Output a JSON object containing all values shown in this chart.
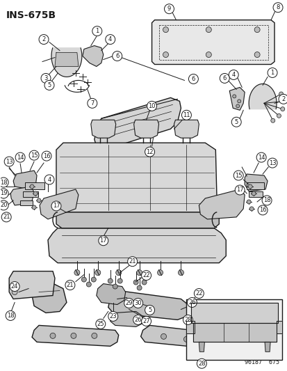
{
  "title": "INS-675B",
  "bg_color": "#ffffff",
  "fig_width": 4.14,
  "fig_height": 5.33,
  "dpi": 100,
  "bottom_right_text": "96187  675",
  "lc": "#1a1a1a",
  "cc": "#ffffff",
  "font_size_title": 10,
  "font_size_labels": 6.5,
  "font_size_bottom": 6
}
